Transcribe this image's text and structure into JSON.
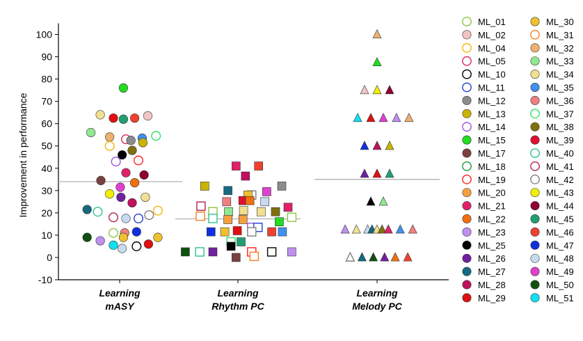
{
  "chart_data": {
    "type": "scatter",
    "ylabel": "Improvement in performance",
    "ylim": [
      -10,
      105
    ],
    "yticks": [
      -10,
      0,
      10,
      20,
      30,
      40,
      50,
      60,
      70,
      80,
      90,
      100
    ],
    "grid": false,
    "legend_position": "right",
    "categories": [
      {
        "line1": "Learning",
        "line2": "mASY",
        "marker": "circle",
        "mean": 34
      },
      {
        "line1": "Learning",
        "line2": "Rhythm PC",
        "marker": "square",
        "mean": 17.3
      },
      {
        "line1": "Learning",
        "line2": "Melody PC",
        "marker": "triangle",
        "mean": 35
      }
    ],
    "legend": [
      {
        "name": "ML_01",
        "color": "#8dc63f",
        "fill": false
      },
      {
        "name": "ML_02",
        "color": "#f2c4c4",
        "fill": true
      },
      {
        "name": "ML_04",
        "color": "#f7b500",
        "fill": false
      },
      {
        "name": "ML_05",
        "color": "#e0245e",
        "fill": false
      },
      {
        "name": "ML_10",
        "color": "#000000",
        "fill": false
      },
      {
        "name": "ML_11",
        "color": "#1f3fd6",
        "fill": false
      },
      {
        "name": "ML_12",
        "color": "#8c8c8c",
        "fill": true
      },
      {
        "name": "ML_13",
        "color": "#c8b400",
        "fill": true
      },
      {
        "name": "ML_14",
        "color": "#a050e0",
        "fill": false
      },
      {
        "name": "ML_15",
        "color": "#22dd22",
        "fill": true
      },
      {
        "name": "ML_17",
        "color": "#7a4040",
        "fill": true
      },
      {
        "name": "ML_18",
        "color": "#1e9a3a",
        "fill": false
      },
      {
        "name": "ML_19",
        "color": "#ff2020",
        "fill": false
      },
      {
        "name": "ML_20",
        "color": "#f5a040",
        "fill": true
      },
      {
        "name": "ML_21",
        "color": "#e0206a",
        "fill": true
      },
      {
        "name": "ML_22",
        "color": "#f07010",
        "fill": true
      },
      {
        "name": "ML_23",
        "color": "#c090f0",
        "fill": true
      },
      {
        "name": "ML_25",
        "color": "#000000",
        "fill": true
      },
      {
        "name": "ML_26",
        "color": "#7020a0",
        "fill": true
      },
      {
        "name": "ML_27",
        "color": "#156a80",
        "fill": true
      },
      {
        "name": "ML_28",
        "color": "#c01060",
        "fill": true
      },
      {
        "name": "ML_29",
        "color": "#e01010",
        "fill": true
      },
      {
        "name": "ML_30",
        "color": "#f0c030",
        "fill": true
      },
      {
        "name": "ML_31",
        "color": "#f58020",
        "fill": false
      },
      {
        "name": "ML_32",
        "color": "#f0b070",
        "fill": true
      },
      {
        "name": "ML_33",
        "color": "#90e890",
        "fill": true
      },
      {
        "name": "ML_34",
        "color": "#f0e090",
        "fill": true
      },
      {
        "name": "ML_35",
        "color": "#4090f0",
        "fill": true
      },
      {
        "name": "ML_36",
        "color": "#f08080",
        "fill": true
      },
      {
        "name": "ML_37",
        "color": "#30e060",
        "fill": false
      },
      {
        "name": "ML_38",
        "color": "#807010",
        "fill": true
      },
      {
        "name": "ML_39",
        "color": "#e01030",
        "fill": true
      },
      {
        "name": "ML_40",
        "color": "#30c090",
        "fill": false
      },
      {
        "name": "ML_41",
        "color": "#b02050",
        "fill": false
      },
      {
        "name": "ML_42",
        "color": "#808080",
        "fill": false
      },
      {
        "name": "ML_43",
        "color": "#f0f000",
        "fill": true
      },
      {
        "name": "ML_44",
        "color": "#900030",
        "fill": true
      },
      {
        "name": "ML_45",
        "color": "#20a070",
        "fill": true
      },
      {
        "name": "ML_46",
        "color": "#f04030",
        "fill": true
      },
      {
        "name": "ML_47",
        "color": "#1030e0",
        "fill": true
      },
      {
        "name": "ML_48",
        "color": "#c8daf0",
        "fill": true
      },
      {
        "name": "ML_49",
        "color": "#e040d0",
        "fill": true
      },
      {
        "name": "ML_50",
        "color": "#105010",
        "fill": true
      },
      {
        "name": "ML_51",
        "color": "#10e0f0",
        "fill": true
      }
    ],
    "points": [
      {
        "g": 0,
        "p": "ML_15",
        "y": 76,
        "j": 0.06
      },
      {
        "g": 0,
        "p": "ML_34",
        "y": 64,
        "j": -0.31
      },
      {
        "g": 0,
        "p": "ML_29",
        "y": 62.5,
        "j": -0.1
      },
      {
        "g": 0,
        "p": "ML_45",
        "y": 62,
        "j": 0.06
      },
      {
        "g": 0,
        "p": "ML_46",
        "y": 62.5,
        "j": 0.24
      },
      {
        "g": 0,
        "p": "ML_02",
        "y": 63.5,
        "j": 0.45
      },
      {
        "g": 0,
        "p": "ML_33",
        "y": 56,
        "j": -0.46
      },
      {
        "g": 0,
        "p": "ML_32",
        "y": 54,
        "j": -0.16
      },
      {
        "g": 0,
        "p": "ML_05",
        "y": 53,
        "j": 0.1
      },
      {
        "g": 0,
        "p": "ML_12",
        "y": 52.5,
        "j": 0.18
      },
      {
        "g": 0,
        "p": "ML_35",
        "y": 53.5,
        "j": 0.36
      },
      {
        "g": 0,
        "p": "ML_37",
        "y": 54.5,
        "j": 0.58
      },
      {
        "g": 0,
        "p": "ML_13",
        "y": 51.5,
        "j": 0.37
      },
      {
        "g": 0,
        "p": "ML_04",
        "y": 50,
        "j": -0.16
      },
      {
        "g": 0,
        "p": "ML_38",
        "y": 48,
        "j": 0.2
      },
      {
        "g": 0,
        "p": "ML_25",
        "y": 46,
        "j": 0.04
      },
      {
        "g": 0,
        "p": "ML_19",
        "y": 43.5,
        "j": 0.3
      },
      {
        "g": 0,
        "p": "ML_14",
        "y": 43,
        "j": -0.06
      },
      {
        "g": 0,
        "p": "ML_21",
        "y": 38,
        "j": 0.1
      },
      {
        "g": 0,
        "p": "ML_44",
        "y": 37,
        "j": 0.39
      },
      {
        "g": 0,
        "p": "ML_17",
        "y": 34.5,
        "j": -0.3
      },
      {
        "g": 0,
        "p": "ML_22",
        "y": 33.5,
        "j": 0.24
      },
      {
        "g": 0,
        "p": "ML_49",
        "y": 31.5,
        "j": 0.01
      },
      {
        "g": 0,
        "p": "ML_43",
        "y": 28.5,
        "j": -0.16
      },
      {
        "g": 0,
        "p": "ML_26",
        "y": 27,
        "j": 0.02
      },
      {
        "g": 0,
        "p": "ML_34",
        "y": 27,
        "j": 0.41
      },
      {
        "g": 0,
        "p": "ML_28",
        "y": 24.5,
        "j": 0.2
      },
      {
        "g": 0,
        "p": "ML_27",
        "y": 21.5,
        "j": -0.52
      },
      {
        "g": 0,
        "p": "ML_40",
        "y": 20.5,
        "j": -0.35
      },
      {
        "g": 0,
        "p": "ML_04",
        "y": 21,
        "j": 0.61
      },
      {
        "g": 0,
        "p": "ML_41",
        "y": 18,
        "j": -0.1
      },
      {
        "g": 0,
        "p": "ML_48",
        "y": 17.5,
        "j": 0.1
      },
      {
        "g": 0,
        "p": "ML_11",
        "y": 17.5,
        "j": 0.3
      },
      {
        "g": 0,
        "p": "ML_42",
        "y": 19,
        "j": 0.47
      },
      {
        "g": 0,
        "p": "ML_01",
        "y": 11,
        "j": -0.1
      },
      {
        "g": 0,
        "p": "ML_36",
        "y": 11,
        "j": 0.08
      },
      {
        "g": 0,
        "p": "ML_47",
        "y": 11.5,
        "j": 0.27
      },
      {
        "g": 0,
        "p": "ML_50",
        "y": 9,
        "j": -0.52
      },
      {
        "g": 0,
        "p": "ML_23",
        "y": 7.5,
        "j": -0.31
      },
      {
        "g": 0,
        "p": "ML_30",
        "y": 9,
        "j": 0.06
      },
      {
        "g": 0,
        "p": "ML_30",
        "y": 9,
        "j": 0.61
      },
      {
        "g": 0,
        "p": "ML_51",
        "y": 5.5,
        "j": -0.1
      },
      {
        "g": 0,
        "p": "ML_48",
        "y": 4,
        "j": 0.04
      },
      {
        "g": 0,
        "p": "ML_10",
        "y": 5,
        "j": 0.27
      },
      {
        "g": 0,
        "p": "ML_29",
        "y": 6,
        "j": 0.46
      },
      {
        "g": 1,
        "p": "ML_21",
        "y": 41,
        "j": -0.03
      },
      {
        "g": 1,
        "p": "ML_46",
        "y": 41,
        "j": 0.33
      },
      {
        "g": 1,
        "p": "ML_28",
        "y": 36.5,
        "j": 0.12
      },
      {
        "g": 1,
        "p": "ML_13",
        "y": 32,
        "j": -0.53
      },
      {
        "g": 1,
        "p": "ML_27",
        "y": 30,
        "j": -0.16
      },
      {
        "g": 1,
        "p": "ML_42",
        "y": 28,
        "j": 0.22
      },
      {
        "g": 1,
        "p": "ML_30",
        "y": 28,
        "j": 0.16
      },
      {
        "g": 1,
        "p": "ML_12",
        "y": 32,
        "j": 0.7
      },
      {
        "g": 1,
        "p": "ML_41",
        "y": 23,
        "j": -0.59
      },
      {
        "g": 1,
        "p": "ML_36",
        "y": 25,
        "j": -0.18
      },
      {
        "g": 1,
        "p": "ML_39",
        "y": 25.5,
        "j": 0.08
      },
      {
        "g": 1,
        "p": "ML_22",
        "y": 25.5,
        "j": 0.19
      },
      {
        "g": 1,
        "p": "ML_48",
        "y": 25,
        "j": 0.43
      },
      {
        "g": 1,
        "p": "ML_49",
        "y": 29.5,
        "j": 0.46
      },
      {
        "g": 1,
        "p": "ML_21",
        "y": 22.5,
        "j": 0.8
      },
      {
        "g": 1,
        "p": "ML_01",
        "y": 20.5,
        "j": -0.4
      },
      {
        "g": 1,
        "p": "ML_33",
        "y": 20.5,
        "j": -0.15
      },
      {
        "g": 1,
        "p": "ML_34",
        "y": 21,
        "j": 0.09
      },
      {
        "g": 1,
        "p": "ML_34",
        "y": 20.5,
        "j": 0.37
      },
      {
        "g": 1,
        "p": "ML_38",
        "y": 20.5,
        "j": 0.6
      },
      {
        "g": 1,
        "p": "ML_31",
        "y": 18.5,
        "j": -0.6
      },
      {
        "g": 1,
        "p": "ML_40",
        "y": 17.5,
        "j": -0.4
      },
      {
        "g": 1,
        "p": "ML_20",
        "y": 17,
        "j": -0.16
      },
      {
        "g": 1,
        "p": "ML_20",
        "y": 17,
        "j": 0.08
      },
      {
        "g": 1,
        "p": "ML_01",
        "y": 18,
        "j": 0.86
      },
      {
        "g": 1,
        "p": "ML_15",
        "y": 16,
        "j": 0.66
      },
      {
        "g": 1,
        "p": "ML_14",
        "y": 13.5,
        "j": 0.22
      },
      {
        "g": 1,
        "p": "ML_11",
        "y": 13.5,
        "j": 0.32
      },
      {
        "g": 1,
        "p": "ML_47",
        "y": 11.5,
        "j": -0.43
      },
      {
        "g": 1,
        "p": "ML_30",
        "y": 11.5,
        "j": -0.21
      },
      {
        "g": 1,
        "p": "ML_29",
        "y": 12,
        "j": -0.01
      },
      {
        "g": 1,
        "p": "ML_42",
        "y": 11.5,
        "j": 0.22
      },
      {
        "g": 1,
        "p": "ML_46",
        "y": 11.5,
        "j": 0.54
      },
      {
        "g": 1,
        "p": "ML_35",
        "y": 11.5,
        "j": 0.71
      },
      {
        "g": 1,
        "p": "ML_37",
        "y": 7,
        "j": -0.11
      },
      {
        "g": 1,
        "p": "ML_45",
        "y": 7,
        "j": 0.05
      },
      {
        "g": 1,
        "p": "ML_25",
        "y": 5,
        "j": -0.11
      },
      {
        "g": 1,
        "p": "ML_50",
        "y": 2.5,
        "j": -0.84
      },
      {
        "g": 1,
        "p": "ML_40",
        "y": 2.5,
        "j": -0.61
      },
      {
        "g": 1,
        "p": "ML_26",
        "y": 2.5,
        "j": -0.4
      },
      {
        "g": 1,
        "p": "ML_17",
        "y": 0,
        "j": -0.03
      },
      {
        "g": 1,
        "p": "ML_19",
        "y": 2.5,
        "j": 0.22
      },
      {
        "g": 1,
        "p": "ML_31",
        "y": 0.5,
        "j": 0.26
      },
      {
        "g": 1,
        "p": "ML_10",
        "y": 2.5,
        "j": 0.54
      },
      {
        "g": 1,
        "p": "ML_23",
        "y": 2.5,
        "j": 0.86
      },
      {
        "g": 2,
        "p": "ML_32",
        "y": 100,
        "j": 0.0
      },
      {
        "g": 2,
        "p": "ML_15",
        "y": 87.5,
        "j": 0.0
      },
      {
        "g": 2,
        "p": "ML_02",
        "y": 75,
        "j": -0.2
      },
      {
        "g": 2,
        "p": "ML_43",
        "y": 75,
        "j": 0.0
      },
      {
        "g": 2,
        "p": "ML_44",
        "y": 75,
        "j": 0.2
      },
      {
        "g": 2,
        "p": "ML_51",
        "y": 62.5,
        "j": -0.31
      },
      {
        "g": 2,
        "p": "ML_29",
        "y": 62.5,
        "j": -0.1
      },
      {
        "g": 2,
        "p": "ML_49",
        "y": 62.5,
        "j": 0.1
      },
      {
        "g": 2,
        "p": "ML_23",
        "y": 62.5,
        "j": 0.31
      },
      {
        "g": 2,
        "p": "ML_32",
        "y": 62.5,
        "j": 0.51
      },
      {
        "g": 2,
        "p": "ML_47",
        "y": 50,
        "j": -0.2
      },
      {
        "g": 2,
        "p": "ML_28",
        "y": 50,
        "j": 0.0
      },
      {
        "g": 2,
        "p": "ML_13",
        "y": 50,
        "j": 0.2
      },
      {
        "g": 2,
        "p": "ML_26",
        "y": 37.5,
        "j": -0.2
      },
      {
        "g": 2,
        "p": "ML_29",
        "y": 37.5,
        "j": 0.0
      },
      {
        "g": 2,
        "p": "ML_45",
        "y": 37.5,
        "j": 0.2
      },
      {
        "g": 2,
        "p": "ML_25",
        "y": 25,
        "j": -0.1
      },
      {
        "g": 2,
        "p": "ML_33",
        "y": 25,
        "j": 0.1
      },
      {
        "g": 2,
        "p": "ML_23",
        "y": 12.5,
        "j": -0.51
      },
      {
        "g": 2,
        "p": "ML_34",
        "y": 12.5,
        "j": -0.33
      },
      {
        "g": 2,
        "p": "ML_48",
        "y": 12.5,
        "j": -0.15
      },
      {
        "g": 2,
        "p": "ML_27",
        "y": 12.5,
        "j": -0.08
      },
      {
        "g": 2,
        "p": "ML_34",
        "y": 12.5,
        "j": 0.0
      },
      {
        "g": 2,
        "p": "ML_38",
        "y": 12.5,
        "j": 0.08
      },
      {
        "g": 2,
        "p": "ML_21",
        "y": 12.5,
        "j": 0.18
      },
      {
        "g": 2,
        "p": "ML_35",
        "y": 12.5,
        "j": 0.37
      },
      {
        "g": 2,
        "p": "ML_36",
        "y": 12.5,
        "j": 0.57
      },
      {
        "g": 2,
        "p": "ML_42",
        "y": 0,
        "j": -0.43
      },
      {
        "g": 2,
        "p": "ML_27",
        "y": 0,
        "j": -0.24
      },
      {
        "g": 2,
        "p": "ML_50",
        "y": 0,
        "j": -0.06
      },
      {
        "g": 2,
        "p": "ML_26",
        "y": 0,
        "j": 0.12
      },
      {
        "g": 2,
        "p": "ML_22",
        "y": 0,
        "j": 0.29
      },
      {
        "g": 2,
        "p": "ML_46",
        "y": 0,
        "j": 0.49
      }
    ]
  }
}
